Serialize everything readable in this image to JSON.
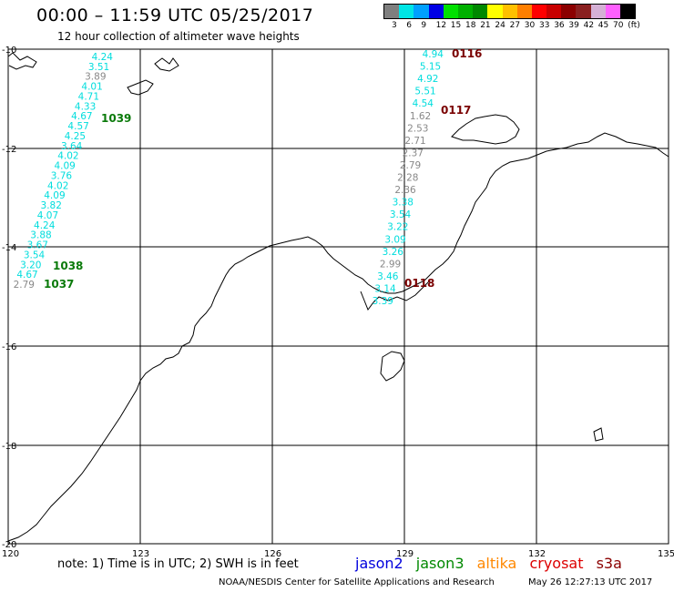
{
  "title": "00:00 – 11:59 UTC 05/25/2017",
  "subtitle": "12 hour collection of altimeter wave heights",
  "legend": {
    "colors": [
      "#7f7f7f",
      "#00e5e5",
      "#00a0ff",
      "#0000e5",
      "#00e000",
      "#00b000",
      "#008800",
      "#ffff00",
      "#ffc000",
      "#ff7f00",
      "#ff0000",
      "#c80000",
      "#8b0000",
      "#8a2020",
      "#d5b0d5",
      "#ff60ff",
      "#000000"
    ],
    "labels": [
      "3",
      "6",
      "9",
      "12",
      "15",
      "18",
      "21",
      "24",
      "27",
      "30",
      "33",
      "36",
      "39",
      "42",
      "45",
      "70",
      "(ft)"
    ]
  },
  "axes": {
    "x_ticks": [
      "120",
      "123",
      "126",
      "129",
      "132",
      "135"
    ],
    "y_ticks": [
      "-10",
      "-12",
      "-14",
      "-16",
      "-18",
      "-20"
    ]
  },
  "track_left": {
    "values": [
      "4.24",
      "3.51",
      "3.89",
      "4.01",
      "4.71",
      "4.33",
      "4.67",
      "4.57",
      "4.25",
      "3.64",
      "4.02",
      "4.09",
      "3.76",
      "4.02",
      "4.09",
      "3.82",
      "4.07",
      "4.24",
      "3.88",
      "3.67",
      "3.54",
      "3.20",
      "4.67",
      "2.79"
    ],
    "colors": [
      "#00dddd",
      "#00dddd",
      "#888888",
      "#00dddd",
      "#00dddd",
      "#00dddd",
      "#00dddd",
      "#00dddd",
      "#00dddd",
      "#00dddd",
      "#00dddd",
      "#00dddd",
      "#00dddd",
      "#00dddd",
      "#00dddd",
      "#00dddd",
      "#00dddd",
      "#00dddd",
      "#00dddd",
      "#00dddd",
      "#00dddd",
      "#00dddd",
      "#00dddd",
      "#888888"
    ]
  },
  "track_right": {
    "values": [
      "4.94",
      "5.15",
      "4.92",
      "5.51",
      "4.54",
      "1.62",
      "2.53",
      "2.71",
      "2.37",
      "2.79",
      "2.28",
      "2.36",
      "3.38",
      "3.54",
      "3.22",
      "3.09",
      "3.26",
      "2.99",
      "3.46",
      "3.14",
      "3.39"
    ],
    "colors": [
      "#00dddd",
      "#00dddd",
      "#00dddd",
      "#00dddd",
      "#00dddd",
      "#888888",
      "#888888",
      "#888888",
      "#888888",
      "#888888",
      "#888888",
      "#888888",
      "#00dddd",
      "#00dddd",
      "#00dddd",
      "#00dddd",
      "#00dddd",
      "#888888",
      "#00dddd",
      "#00dddd",
      "#00dddd"
    ]
  },
  "pass_labels": [
    {
      "text": "1039",
      "color": "#0a7a0a"
    },
    {
      "text": "1038",
      "color": "#0a7a0a"
    },
    {
      "text": "1037",
      "color": "#0a7a0a"
    },
    {
      "text": "0116",
      "color": "#7a0000"
    },
    {
      "text": "0117",
      "color": "#7a0000"
    },
    {
      "text": "0118",
      "color": "#7a0000"
    }
  ],
  "note": "note: 1) Time is in UTC; 2) SWH is in feet",
  "satellites": [
    {
      "name": "jason2",
      "color": "#0000dd"
    },
    {
      "name": "jason3",
      "color": "#008800"
    },
    {
      "name": "altika",
      "color": "#ff8800"
    },
    {
      "name": "cryosat",
      "color": "#dd0000"
    },
    {
      "name": "s3a",
      "color": "#8b0000"
    }
  ],
  "credit": "NOAA/NESDIS Center for Satellite Applications and Research",
  "timestamp": "May 26 12:27:13 UTC 2017"
}
